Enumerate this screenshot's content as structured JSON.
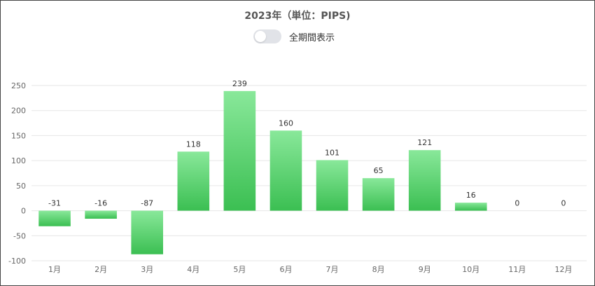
{
  "header": {
    "title": "2023年（単位：PIPS)",
    "toggle_label": "全期間表示"
  },
  "colors": {
    "bar_top": "#89e89a",
    "bar_bottom": "#3bbf52",
    "grid": "#e6e6e6",
    "toggle_off": "#e1e3e8"
  },
  "chart_data": {
    "type": "bar",
    "title": "2023年（単位：PIPS)",
    "xlabel": "",
    "ylabel": "",
    "categories": [
      "1月",
      "2月",
      "3月",
      "4月",
      "5月",
      "6月",
      "7月",
      "8月",
      "9月",
      "10月",
      "11月",
      "12月"
    ],
    "values": [
      -31,
      -16,
      -87,
      118,
      239,
      160,
      101,
      65,
      121,
      16,
      0,
      0
    ],
    "ylim": [
      -100,
      250
    ],
    "yticks": [
      250,
      200,
      150,
      100,
      50,
      0,
      -50,
      -100
    ],
    "grid": true,
    "data_labels": true
  }
}
